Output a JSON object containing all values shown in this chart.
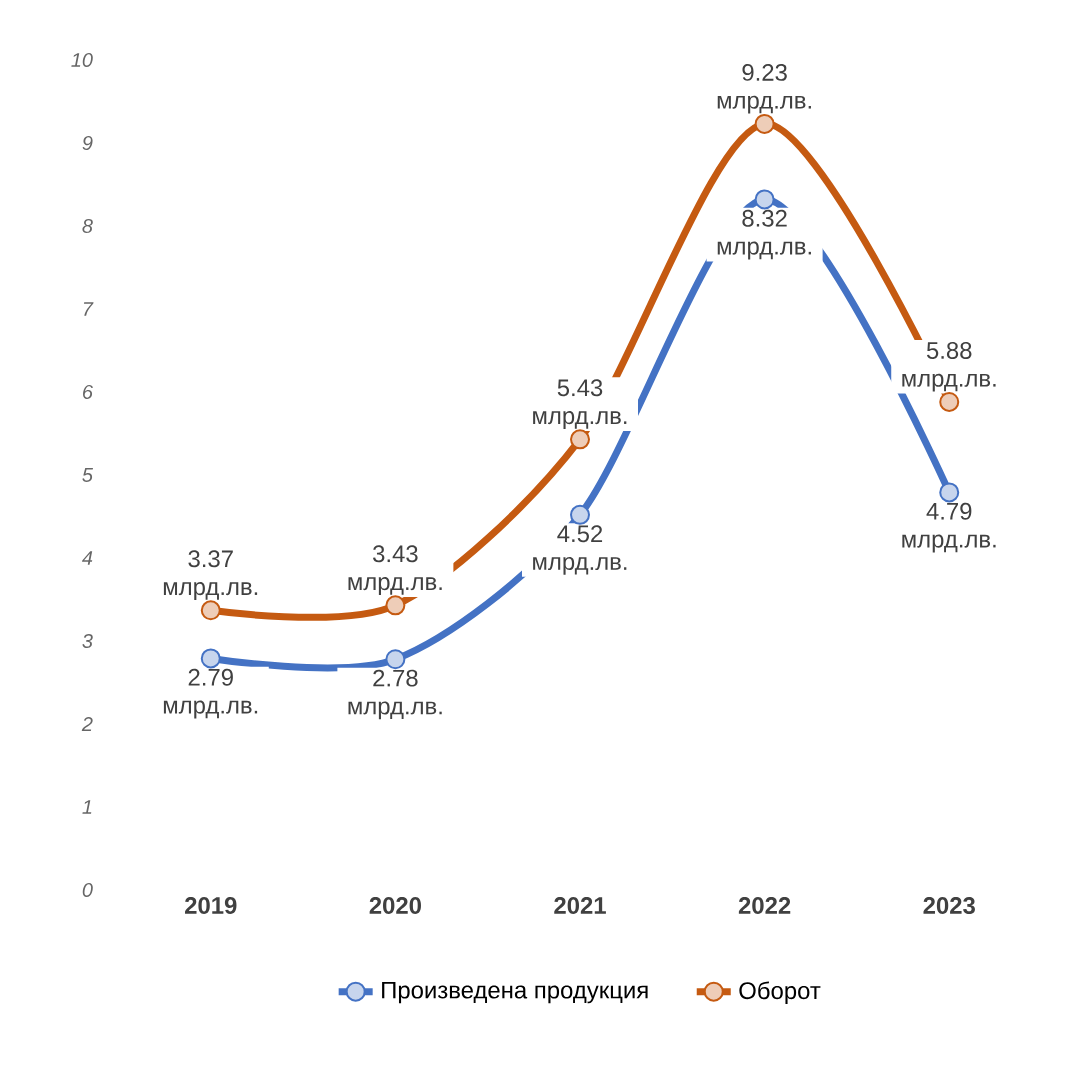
{
  "chart_data": {
    "type": "line",
    "categories": [
      "2019",
      "2020",
      "2021",
      "2022",
      "2023"
    ],
    "ylim": [
      0,
      10
    ],
    "yticks": [
      0,
      1,
      2,
      3,
      4,
      5,
      6,
      7,
      8,
      9,
      10
    ],
    "marker": "circle",
    "legend": "bottom",
    "series": [
      {
        "name": "Произведена продукция",
        "color": "#4472c4",
        "values": [
          2.79,
          2.78,
          4.52,
          8.32,
          4.79
        ],
        "value_labels": [
          "2.79 млрд.лв.",
          "2.78 млрд.лв.",
          "4.52 млрд.лв.",
          "8.32 млрд.лв.",
          "4.79 млрд.лв."
        ]
      },
      {
        "name": "Оборот",
        "color": "#c55a11",
        "values": [
          3.37,
          3.43,
          5.43,
          9.23,
          5.88
        ],
        "value_labels": [
          "3.37 млрд.лв.",
          "3.43 млрд.лв.",
          "5.43 млрд.лв.",
          "9.23 млрд.лв.",
          "5.88 млрд.лв."
        ]
      }
    ]
  }
}
